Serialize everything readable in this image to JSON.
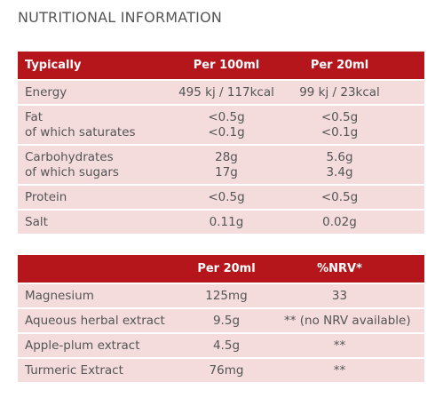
{
  "title": "NUTRITIONAL INFORMATION",
  "tables": [
    {
      "header": [
        "Typically",
        "Per 100ml",
        "Per 20ml"
      ],
      "rows": [
        [
          [
            "Energy"
          ],
          [
            "495 kj / 117kcal"
          ],
          [
            "99 kj / 23kcal"
          ]
        ],
        [
          [
            "Fat",
            "of which saturates"
          ],
          [
            "<0.5g",
            "<0.1g"
          ],
          [
            "<0.5g",
            "<0.1g"
          ]
        ],
        [
          [
            "Carbohydrates",
            "of which sugars"
          ],
          [
            "28g",
            "17g"
          ],
          [
            "5.6g",
            "3.4g"
          ]
        ],
        [
          [
            "Protein"
          ],
          [
            "<0.5g"
          ],
          [
            "<0.5g"
          ]
        ],
        [
          [
            "Salt"
          ],
          [
            "0.11g"
          ],
          [
            "0.02g"
          ]
        ]
      ]
    },
    {
      "header": [
        "",
        "Per 20ml",
        "%NRV*"
      ],
      "rows": [
        [
          [
            "Magnesium"
          ],
          [
            "125mg"
          ],
          [
            "33"
          ]
        ],
        [
          [
            "Aqueous herbal extract"
          ],
          [
            "9.5g"
          ],
          [
            "** (no NRV available)"
          ]
        ],
        [
          [
            "Apple-plum extract"
          ],
          [
            "4.5g"
          ],
          [
            "**"
          ]
        ],
        [
          [
            "Turmeric Extract"
          ],
          [
            "76mg"
          ],
          [
            "**"
          ]
        ]
      ]
    }
  ]
}
